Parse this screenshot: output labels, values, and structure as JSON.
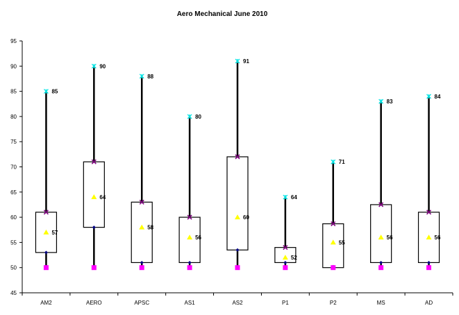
{
  "chart_data": {
    "type": "box",
    "title": "Aero Mechanical  June  2010",
    "xlabel": "",
    "ylabel": "",
    "ylim": [
      45,
      95
    ],
    "yticks": [
      45,
      50,
      55,
      60,
      65,
      70,
      75,
      80,
      85,
      90,
      95
    ],
    "grid": false,
    "legend": "none",
    "categories": [
      "AM2",
      "AERO",
      "APSC",
      "AS1",
      "AS2",
      "P1",
      "P2",
      "MS",
      "AD"
    ],
    "min": [
      50,
      50,
      50,
      50,
      50,
      50,
      50,
      50,
      50
    ],
    "q1": [
      53,
      58,
      51,
      51,
      53.5,
      51,
      50,
      51,
      51
    ],
    "median": [
      53,
      58,
      51,
      51,
      53.5,
      51,
      50.2,
      51,
      51
    ],
    "mean": [
      57,
      64,
      58,
      56,
      60,
      52,
      55,
      56,
      56
    ],
    "q3": [
      61,
      71,
      63,
      60,
      72,
      54,
      58.7,
      62.5,
      61
    ],
    "max": [
      85,
      90,
      88,
      80,
      91,
      64,
      71,
      83,
      84
    ],
    "max_labels": [
      "85",
      "90",
      "88",
      "80",
      "91",
      "64",
      "71",
      "83",
      "84"
    ],
    "mean_labels": [
      "57",
      "64",
      "58",
      "56",
      "60",
      "52",
      "55",
      "56",
      "56"
    ],
    "colors": {
      "max_marker": "#00e5e5",
      "q3_marker": "#800080",
      "mean_marker": "#ffff00",
      "median_marker": "#000080",
      "min_marker": "#ff00ff",
      "line": "#000000"
    }
  }
}
